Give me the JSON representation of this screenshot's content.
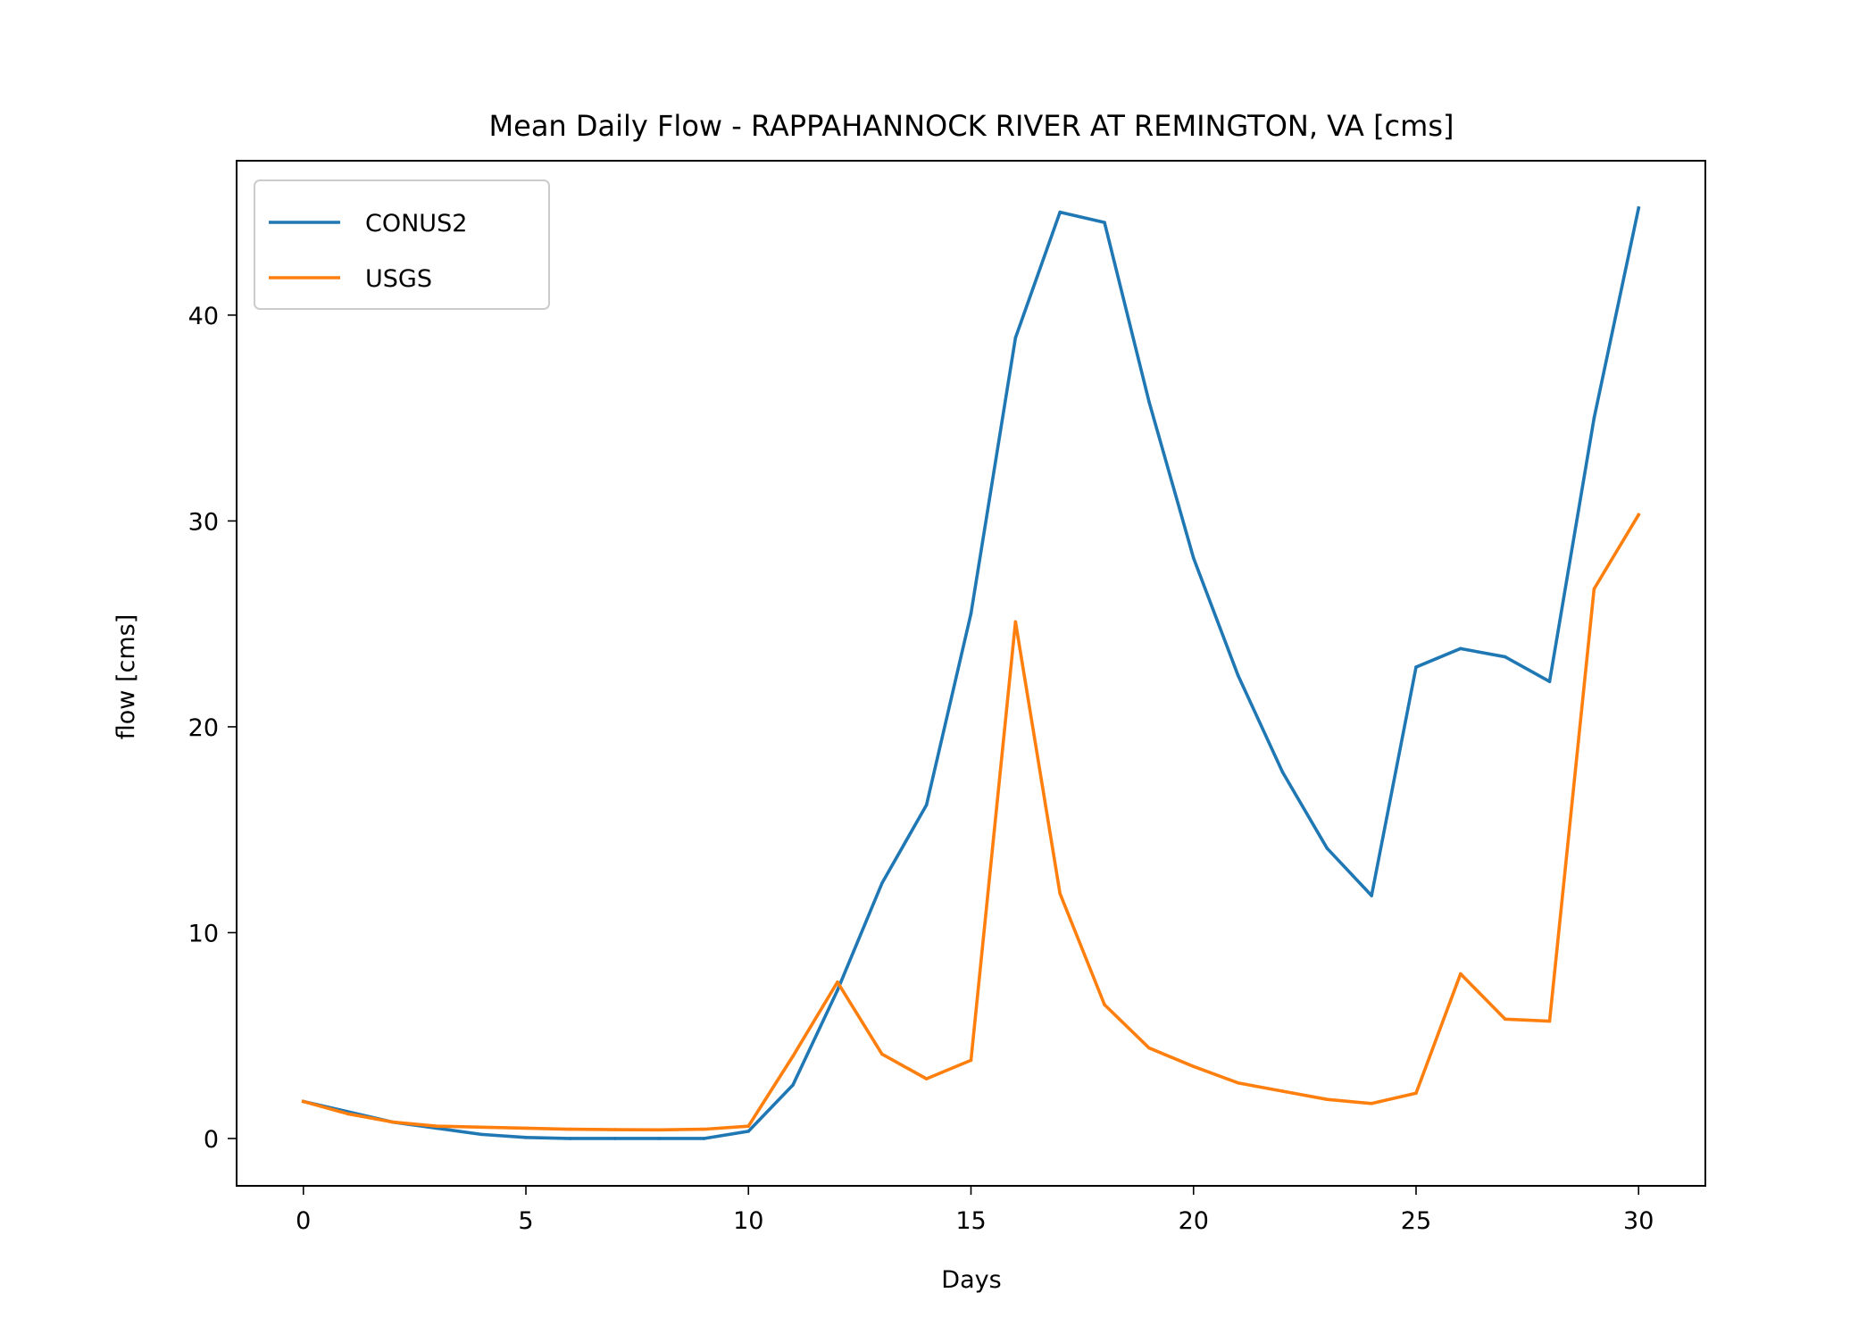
{
  "chart_data": {
    "type": "line",
    "title": "Mean Daily Flow - RAPPAHANNOCK RIVER AT REMINGTON, VA [cms]",
    "xlabel": "Days",
    "ylabel": "flow [cms]",
    "xlim": [
      -1.5,
      31.5
    ],
    "ylim": [
      -2.3,
      47.5
    ],
    "xticks": [
      0,
      5,
      10,
      15,
      20,
      25,
      30
    ],
    "xtick_labels": [
      "0",
      "5",
      "10",
      "15",
      "20",
      "25",
      "30"
    ],
    "yticks": [
      0,
      10,
      20,
      30,
      40
    ],
    "ytick_labels": [
      "0",
      "10",
      "20",
      "30",
      "40"
    ],
    "grid": false,
    "legend_position": "top-left",
    "x": [
      0,
      1,
      2,
      3,
      4,
      5,
      6,
      7,
      8,
      9,
      10,
      11,
      12,
      13,
      14,
      15,
      16,
      17,
      18,
      19,
      20,
      21,
      22,
      23,
      24,
      25,
      26,
      27,
      28,
      29,
      30
    ],
    "series": [
      {
        "name": "CONUS2",
        "color": "#1f77b4",
        "values": [
          1.8,
          1.3,
          0.8,
          0.5,
          0.2,
          0.05,
          0.0,
          0.0,
          0.0,
          0.0,
          0.35,
          2.6,
          7.2,
          12.4,
          16.2,
          25.5,
          38.9,
          45.0,
          44.5,
          35.8,
          28.2,
          22.5,
          17.8,
          14.1,
          11.8,
          22.9,
          23.8,
          23.4,
          22.2,
          35.0,
          45.2
        ]
      },
      {
        "name": "USGS",
        "color": "#ff7f0e",
        "values": [
          1.8,
          1.2,
          0.8,
          0.6,
          0.55,
          0.5,
          0.45,
          0.43,
          0.42,
          0.45,
          0.6,
          4.0,
          7.6,
          4.1,
          2.9,
          3.8,
          25.1,
          11.9,
          6.5,
          4.4,
          3.5,
          2.7,
          2.3,
          1.9,
          1.7,
          2.2,
          8.0,
          5.8,
          5.7,
          26.7,
          30.3
        ]
      }
    ]
  }
}
